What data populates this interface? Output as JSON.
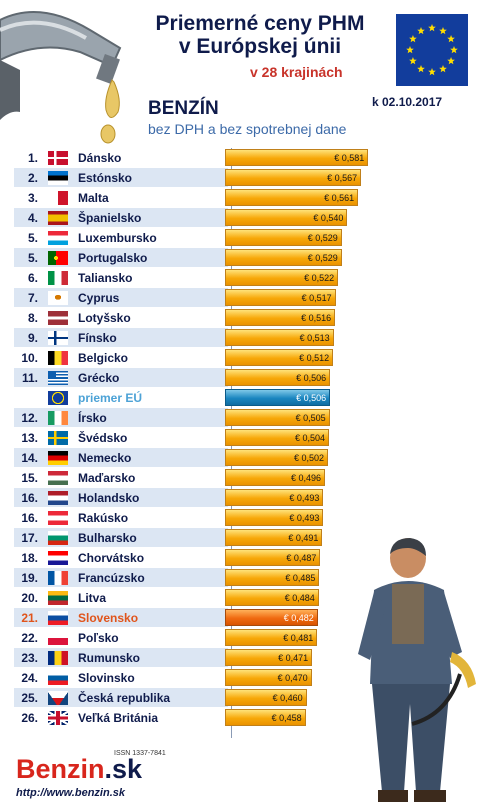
{
  "header": {
    "title_line1": "Priemerné ceny PHM",
    "title_line2": "v Európskej únii",
    "subtitle": "v 28 krajinách",
    "fuel": "BENZÍN",
    "date": "k 02.10.2017",
    "note": "bez DPH a bez spotrebnej dane"
  },
  "footer": {
    "logo_main": "Benzin",
    "logo_suffix": ".sk",
    "issn": "ISSN 1337-7841",
    "url": "http://www.benzin.sk"
  },
  "colors": {
    "bar": "#f7a809",
    "eu_average_bar": "#1b86c0",
    "highlight_bar": "#f06a10",
    "title": "#0f1b4b",
    "accent": "#c8332a"
  },
  "chart_data": {
    "type": "bar",
    "orientation": "horizontal",
    "title": "Priemerné ceny PHM v Európskej únii",
    "unit": "€",
    "xlim": [
      0.3,
      0.6
    ],
    "grid": false,
    "rows": [
      {
        "rank": "1.",
        "country": "Dánsko",
        "value": 0.581,
        "label": "€ 0,581",
        "flag": "dk"
      },
      {
        "rank": "2.",
        "country": "Estónsko",
        "value": 0.567,
        "label": "€ 0,567",
        "flag": "ee"
      },
      {
        "rank": "3.",
        "country": "Malta",
        "value": 0.561,
        "label": "€ 0,561",
        "flag": "mt"
      },
      {
        "rank": "4.",
        "country": "Španielsko",
        "value": 0.54,
        "label": "€ 0,540",
        "flag": "es"
      },
      {
        "rank": "5.",
        "country": "Luxembursko",
        "value": 0.529,
        "label": "€ 0,529",
        "flag": "lu"
      },
      {
        "rank": "5.",
        "country": "Portugalsko",
        "value": 0.529,
        "label": "€ 0,529",
        "flag": "pt"
      },
      {
        "rank": "6.",
        "country": "Taliansko",
        "value": 0.522,
        "label": "€ 0,522",
        "flag": "it"
      },
      {
        "rank": "7.",
        "country": "Cyprus",
        "value": 0.517,
        "label": "€ 0,517",
        "flag": "cy"
      },
      {
        "rank": "8.",
        "country": "Lotyšsko",
        "value": 0.516,
        "label": "€ 0,516",
        "flag": "lv"
      },
      {
        "rank": "9.",
        "country": "Fínsko",
        "value": 0.513,
        "label": "€ 0,513",
        "flag": "fi"
      },
      {
        "rank": "10.",
        "country": "Belgicko",
        "value": 0.512,
        "label": "€ 0,512",
        "flag": "be"
      },
      {
        "rank": "11.",
        "country": "Grécko",
        "value": 0.506,
        "label": "€ 0,506",
        "flag": "gr"
      },
      {
        "rank": "",
        "country": "priemer EÚ",
        "value": 0.506,
        "label": "€ 0,506",
        "flag": "eu",
        "kind": "avg"
      },
      {
        "rank": "12.",
        "country": "Írsko",
        "value": 0.505,
        "label": "€ 0,505",
        "flag": "ie"
      },
      {
        "rank": "13.",
        "country": "Švédsko",
        "value": 0.504,
        "label": "€ 0,504",
        "flag": "se"
      },
      {
        "rank": "14.",
        "country": "Nemecko",
        "value": 0.502,
        "label": "€ 0,502",
        "flag": "de"
      },
      {
        "rank": "15.",
        "country": "Maďarsko",
        "value": 0.496,
        "label": "€ 0,496",
        "flag": "hu"
      },
      {
        "rank": "16.",
        "country": "Holandsko",
        "value": 0.493,
        "label": "€ 0,493",
        "flag": "nl"
      },
      {
        "rank": "16.",
        "country": "Rakúsko",
        "value": 0.493,
        "label": "€ 0,493",
        "flag": "at"
      },
      {
        "rank": "17.",
        "country": "Bulharsko",
        "value": 0.491,
        "label": "€ 0,491",
        "flag": "bg"
      },
      {
        "rank": "18.",
        "country": "Chorvátsko",
        "value": 0.487,
        "label": "€ 0,487",
        "flag": "hr"
      },
      {
        "rank": "19.",
        "country": "Francúzsko",
        "value": 0.485,
        "label": "€ 0,485",
        "flag": "fr"
      },
      {
        "rank": "20.",
        "country": "Litva",
        "value": 0.484,
        "label": "€ 0,484",
        "flag": "lt"
      },
      {
        "rank": "21.",
        "country": "Slovensko",
        "value": 0.482,
        "label": "€ 0,482",
        "flag": "sk",
        "kind": "hl"
      },
      {
        "rank": "22.",
        "country": "Poľsko",
        "value": 0.481,
        "label": "€ 0,481",
        "flag": "pl"
      },
      {
        "rank": "23.",
        "country": "Rumunsko",
        "value": 0.471,
        "label": "€ 0,471",
        "flag": "ro"
      },
      {
        "rank": "24.",
        "country": "Slovinsko",
        "value": 0.47,
        "label": "€ 0,470",
        "flag": "si"
      },
      {
        "rank": "25.",
        "country": "Česká republika",
        "value": 0.46,
        "label": "€ 0,460",
        "flag": "cz"
      },
      {
        "rank": "26.",
        "country": "Veľká Británia",
        "value": 0.458,
        "label": "€ 0,458",
        "flag": "gb"
      }
    ]
  }
}
